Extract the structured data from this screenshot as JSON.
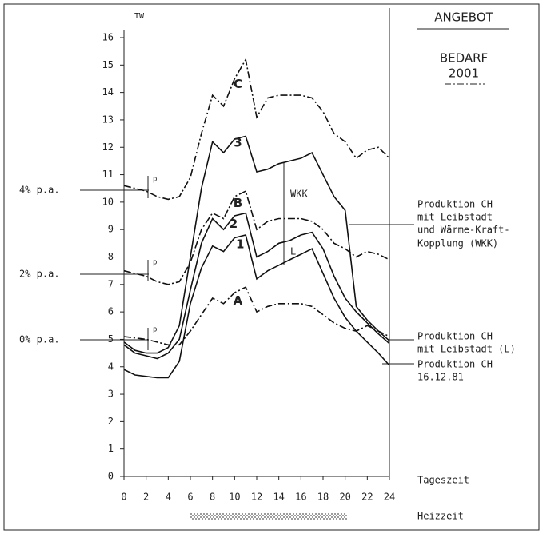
{
  "chart_data": {
    "type": "line",
    "y_label": "TW",
    "x_label": "Tageszeit",
    "band_label": "Heizzeit",
    "legend": {
      "supply": "ANGEBOT",
      "demand": [
        "BEDARF",
        "2001"
      ]
    },
    "x": [
      0,
      1,
      2,
      3,
      4,
      5,
      6,
      7,
      8,
      9,
      10,
      11,
      12,
      13,
      14,
      15,
      16,
      17,
      18,
      19,
      20,
      21,
      22,
      23,
      24
    ],
    "xlim": [
      0,
      24
    ],
    "xticks": [
      0,
      2,
      4,
      6,
      8,
      10,
      12,
      14,
      16,
      18,
      20,
      22,
      24
    ],
    "ylim": [
      0,
      16
    ],
    "yticks": [
      0,
      1,
      2,
      3,
      4,
      5,
      6,
      7,
      8,
      9,
      10,
      11,
      12,
      13,
      14,
      15,
      16
    ],
    "series": [
      {
        "name": "C",
        "color": "#111111",
        "linestyle": "dashdot",
        "values": [
          10.6,
          10.5,
          10.4,
          10.2,
          10.1,
          10.2,
          10.9,
          12.5,
          13.9,
          13.5,
          14.5,
          15.2,
          13.1,
          13.8,
          13.9,
          13.9,
          13.9,
          13.8,
          13.3,
          12.5,
          12.2,
          11.6,
          11.9,
          12.0,
          11.6
        ]
      },
      {
        "name": "3",
        "color": "#111111",
        "linestyle": "solid",
        "values": [
          4.9,
          4.6,
          4.5,
          4.5,
          4.7,
          5.5,
          8.0,
          10.5,
          12.2,
          11.8,
          12.3,
          12.4,
          11.1,
          11.2,
          11.4,
          11.5,
          11.6,
          11.8,
          11.0,
          10.2,
          9.7,
          6.2,
          5.7,
          5.3,
          4.95
        ]
      },
      {
        "name": "B",
        "color": "#111111",
        "linestyle": "dashdot",
        "values": [
          7.5,
          7.4,
          7.3,
          7.1,
          7.0,
          7.1,
          7.8,
          9.0,
          9.6,
          9.4,
          10.2,
          10.4,
          9.0,
          9.3,
          9.4,
          9.4,
          9.4,
          9.3,
          9.0,
          8.5,
          8.3,
          8.0,
          8.2,
          8.1,
          7.9
        ]
      },
      {
        "name": "2",
        "color": "#111111",
        "linestyle": "solid",
        "values": [
          4.8,
          4.5,
          4.4,
          4.3,
          4.5,
          5.0,
          6.8,
          8.5,
          9.4,
          9.0,
          9.5,
          9.6,
          8.0,
          8.2,
          8.5,
          8.6,
          8.8,
          8.9,
          8.3,
          7.3,
          6.5,
          6.0,
          5.6,
          5.2,
          4.85
        ]
      },
      {
        "name": "1",
        "color": "#111111",
        "linestyle": "solid",
        "values": [
          3.9,
          3.7,
          3.65,
          3.6,
          3.6,
          4.2,
          6.3,
          7.6,
          8.4,
          8.2,
          8.7,
          8.8,
          7.2,
          7.5,
          7.7,
          7.9,
          8.1,
          8.3,
          7.4,
          6.5,
          5.8,
          5.3,
          4.9,
          4.5,
          4.05
        ]
      },
      {
        "name": "A",
        "color": "#111111",
        "linestyle": "dashdot",
        "values": [
          5.1,
          5.05,
          5.0,
          4.9,
          4.8,
          4.8,
          5.3,
          5.9,
          6.5,
          6.3,
          6.7,
          6.9,
          6.0,
          6.2,
          6.3,
          6.3,
          6.3,
          6.2,
          5.9,
          5.6,
          5.4,
          5.3,
          5.5,
          5.3,
          5.1
        ]
      }
    ],
    "growth_labels": [
      "4% p.a.",
      "2% p.a.",
      "0% p.a."
    ],
    "p_label": "p",
    "arrow_labels": [
      "WKK",
      "L"
    ],
    "annotations": [
      [
        "Produktion CH",
        "mit Leibstadt",
        "und Wärme-Kraft-",
        "Kopplung (WKK)"
      ],
      [
        "Produktion CH",
        "mit Leibstadt (L)"
      ],
      [
        "Produktion CH",
        "16.12.81"
      ]
    ]
  }
}
